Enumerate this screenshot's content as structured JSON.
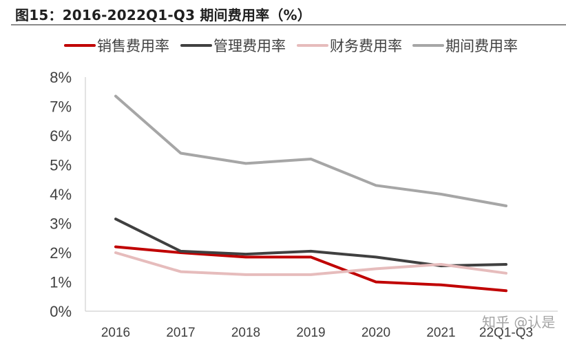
{
  "title": "图15：2016-2022Q1-Q3 期间费用率（%）",
  "watermark": "知乎 @认是",
  "chart_data": {
    "type": "line",
    "title": "图15：2016-2022Q1-Q3 期间费用率（%）",
    "xlabel": "",
    "ylabel": "",
    "categories": [
      "2016",
      "2017",
      "2018",
      "2019",
      "2020",
      "2021",
      "22Q1-Q3"
    ],
    "ylim": [
      0,
      8
    ],
    "yticks": [
      "0%",
      "1%",
      "2%",
      "3%",
      "4%",
      "5%",
      "6%",
      "7%",
      "8%"
    ],
    "grid": false,
    "legend_position": "top",
    "series": [
      {
        "name": "销售费用率",
        "color": "#c00000",
        "values": [
          2.2,
          2.0,
          1.85,
          1.85,
          1.0,
          0.9,
          0.7
        ]
      },
      {
        "name": "管理费用率",
        "color": "#404040",
        "values": [
          3.15,
          2.05,
          1.95,
          2.05,
          1.85,
          1.55,
          1.6
        ]
      },
      {
        "name": "财务费用率",
        "color": "#e6bcbc",
        "values": [
          2.0,
          1.35,
          1.25,
          1.25,
          1.45,
          1.6,
          1.3
        ]
      },
      {
        "name": "期间费用率",
        "color": "#a6a6a6",
        "values": [
          7.35,
          5.4,
          5.05,
          5.2,
          4.3,
          4.0,
          3.6
        ]
      }
    ]
  }
}
